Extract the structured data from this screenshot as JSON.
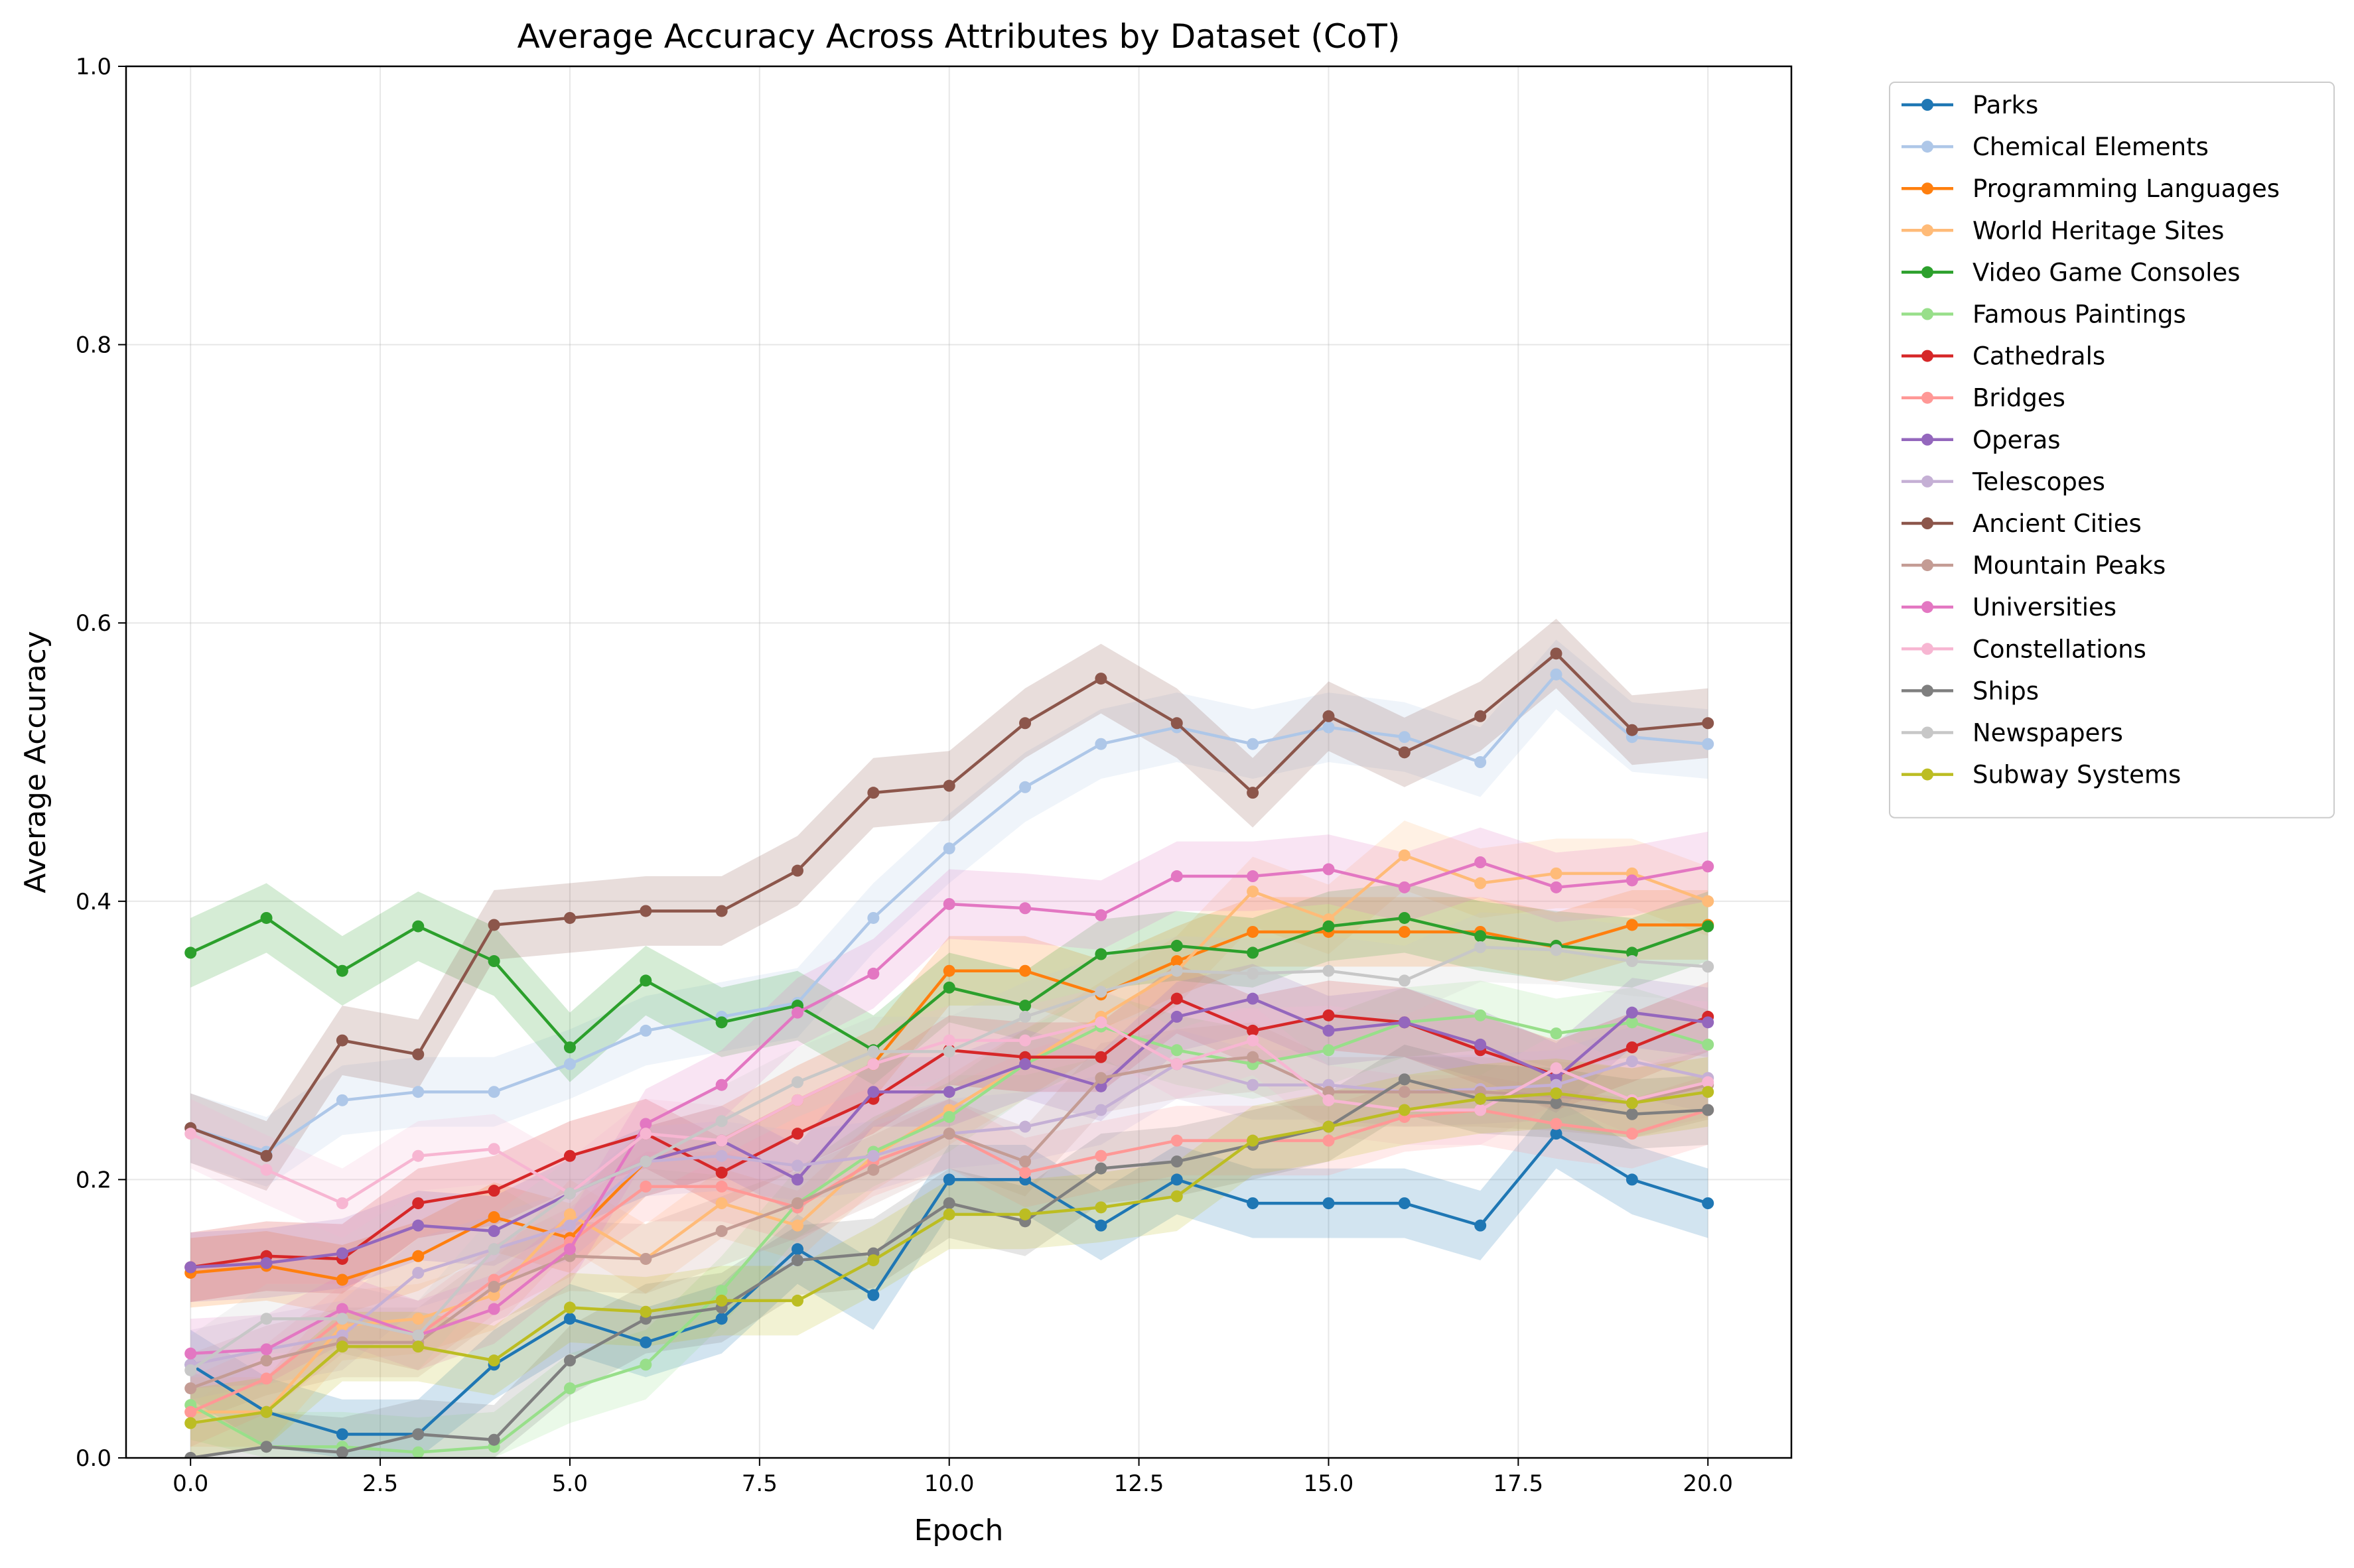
{
  "chart_data": {
    "type": "line",
    "title": "Average Accuracy Across Attributes by Dataset (CoT)",
    "xlabel": "Epoch",
    "ylabel": "Average Accuracy",
    "xlim": [
      -0.85,
      21.1
    ],
    "ylim": [
      0,
      1.0
    ],
    "xticks": [
      0.0,
      2.5,
      5.0,
      7.5,
      10.0,
      12.5,
      15.0,
      17.5,
      20.0
    ],
    "xtick_labels": [
      "0.0",
      "2.5",
      "5.0",
      "7.5",
      "10.0",
      "12.5",
      "15.0",
      "17.5",
      "20.0"
    ],
    "yticks": [
      0.0,
      0.2,
      0.4,
      0.6,
      0.8,
      1.0
    ],
    "ytick_labels": [
      "0.0",
      "0.2",
      "0.4",
      "0.6",
      "0.8",
      "1.0"
    ],
    "grid": true,
    "legend_position": "outside-right",
    "x": [
      0,
      1,
      2,
      3,
      4,
      5,
      6,
      7,
      8,
      9,
      10,
      11,
      12,
      13,
      14,
      15,
      16,
      17,
      18,
      19,
      20
    ],
    "band_halfwidth": 0.025,
    "series": [
      {
        "name": "Parks",
        "color": "#1f77b4",
        "values": [
          0.067,
          0.033,
          0.017,
          0.017,
          0.067,
          0.1,
          0.083,
          0.1,
          0.15,
          0.117,
          0.2,
          0.2,
          0.167,
          0.2,
          0.183,
          0.183,
          0.183,
          0.167,
          0.233,
          0.2,
          0.183
        ]
      },
      {
        "name": "Chemical Elements",
        "color": "#aec7e8",
        "values": [
          0.237,
          0.22,
          0.257,
          0.263,
          0.263,
          0.283,
          0.307,
          0.317,
          0.327,
          0.388,
          0.438,
          0.482,
          0.513,
          0.525,
          0.513,
          0.525,
          0.518,
          0.5,
          0.563,
          0.518,
          0.513
        ]
      },
      {
        "name": "Programming Languages",
        "color": "#ff7f0e",
        "values": [
          0.133,
          0.138,
          0.128,
          0.145,
          0.173,
          0.158,
          0.213,
          0.228,
          0.257,
          0.283,
          0.35,
          0.35,
          0.333,
          0.357,
          0.378,
          0.378,
          0.378,
          0.378,
          0.367,
          0.383,
          0.383
        ]
      },
      {
        "name": "World Heritage Sites",
        "color": "#ffbb78",
        "values": [
          0.033,
          0.033,
          0.095,
          0.1,
          0.117,
          0.175,
          0.143,
          0.183,
          0.167,
          0.217,
          0.25,
          0.283,
          0.317,
          0.35,
          0.407,
          0.387,
          0.433,
          0.413,
          0.42,
          0.42,
          0.4
        ]
      },
      {
        "name": "Video Game Consoles",
        "color": "#2ca02c",
        "values": [
          0.363,
          0.388,
          0.35,
          0.382,
          0.357,
          0.295,
          0.343,
          0.313,
          0.325,
          0.293,
          0.338,
          0.325,
          0.362,
          0.368,
          0.363,
          0.382,
          0.388,
          0.375,
          0.368,
          0.363,
          0.382
        ]
      },
      {
        "name": "Famous Paintings",
        "color": "#98df8a",
        "values": [
          0.038,
          0.008,
          0.008,
          0.004,
          0.008,
          0.05,
          0.067,
          0.12,
          0.183,
          0.22,
          0.245,
          0.283,
          0.31,
          0.293,
          0.283,
          0.293,
          0.313,
          0.318,
          0.305,
          0.313,
          0.297
        ]
      },
      {
        "name": "Cathedrals",
        "color": "#d62728",
        "values": [
          0.137,
          0.145,
          0.143,
          0.183,
          0.192,
          0.217,
          0.233,
          0.205,
          0.233,
          0.258,
          0.293,
          0.288,
          0.288,
          0.33,
          0.307,
          0.318,
          0.313,
          0.293,
          0.275,
          0.295,
          0.317
        ]
      },
      {
        "name": "Bridges",
        "color": "#ff9896",
        "values": [
          0.033,
          0.057,
          0.1,
          0.088,
          0.128,
          0.155,
          0.195,
          0.195,
          0.18,
          0.213,
          0.233,
          0.205,
          0.217,
          0.228,
          0.228,
          0.228,
          0.245,
          0.25,
          0.24,
          0.233,
          0.25
        ]
      },
      {
        "name": "Operas",
        "color": "#9467bd",
        "values": [
          0.137,
          0.14,
          0.147,
          0.167,
          0.163,
          0.19,
          0.213,
          0.228,
          0.2,
          0.263,
          0.263,
          0.283,
          0.267,
          0.317,
          0.33,
          0.307,
          0.313,
          0.297,
          0.273,
          0.32,
          0.313
        ]
      },
      {
        "name": "Telescopes",
        "color": "#c5b0d5",
        "values": [
          0.067,
          0.078,
          0.088,
          0.133,
          0.15,
          0.167,
          0.213,
          0.217,
          0.21,
          0.217,
          0.233,
          0.238,
          0.25,
          0.283,
          0.268,
          0.268,
          0.263,
          0.265,
          0.268,
          0.285,
          0.273
        ]
      },
      {
        "name": "Ancient Cities",
        "color": "#8c564b",
        "values": [
          0.237,
          0.217,
          0.3,
          0.29,
          0.383,
          0.388,
          0.393,
          0.393,
          0.422,
          0.478,
          0.483,
          0.528,
          0.56,
          0.528,
          0.478,
          0.533,
          0.507,
          0.533,
          0.578,
          0.523,
          0.528
        ]
      },
      {
        "name": "Mountain Peaks",
        "color": "#c49c94",
        "values": [
          0.05,
          0.07,
          0.083,
          0.083,
          0.123,
          0.145,
          0.143,
          0.163,
          0.183,
          0.207,
          0.233,
          0.213,
          0.273,
          0.283,
          0.288,
          0.263,
          0.263,
          0.263,
          0.26,
          0.255,
          0.268
        ]
      },
      {
        "name": "Universities",
        "color": "#e377c2",
        "values": [
          0.075,
          0.078,
          0.107,
          0.088,
          0.107,
          0.15,
          0.24,
          0.268,
          0.32,
          0.348,
          0.398,
          0.395,
          0.39,
          0.418,
          0.418,
          0.423,
          0.41,
          0.428,
          0.41,
          0.415,
          0.425
        ]
      },
      {
        "name": "Constellations",
        "color": "#f7b6d2",
        "values": [
          0.233,
          0.207,
          0.183,
          0.217,
          0.222,
          0.19,
          0.233,
          0.228,
          0.257,
          0.283,
          0.3,
          0.3,
          0.313,
          0.283,
          0.3,
          0.257,
          0.25,
          0.25,
          0.28,
          0.257,
          0.27
        ]
      },
      {
        "name": "Ships",
        "color": "#7f7f7f",
        "values": [
          0.0,
          0.008,
          0.004,
          0.017,
          0.013,
          0.07,
          0.1,
          0.108,
          0.142,
          0.147,
          0.183,
          0.17,
          0.208,
          0.213,
          0.225,
          0.238,
          0.272,
          0.258,
          0.255,
          0.247,
          0.25
        ]
      },
      {
        "name": "Newspapers",
        "color": "#c7c7c7",
        "values": [
          0.063,
          0.1,
          0.1,
          0.088,
          0.15,
          0.19,
          0.213,
          0.242,
          0.27,
          0.292,
          0.292,
          0.317,
          0.335,
          0.35,
          0.348,
          0.35,
          0.343,
          0.367,
          0.365,
          0.357,
          0.353
        ]
      },
      {
        "name": "Subway Systems",
        "color": "#bcbd22",
        "values": [
          0.025,
          0.033,
          0.08,
          0.08,
          0.07,
          0.108,
          0.105,
          0.113,
          0.113,
          0.142,
          0.175,
          0.175,
          0.18,
          0.188,
          0.228,
          0.238,
          0.25,
          0.258,
          0.262,
          0.255,
          0.263
        ]
      }
    ]
  }
}
